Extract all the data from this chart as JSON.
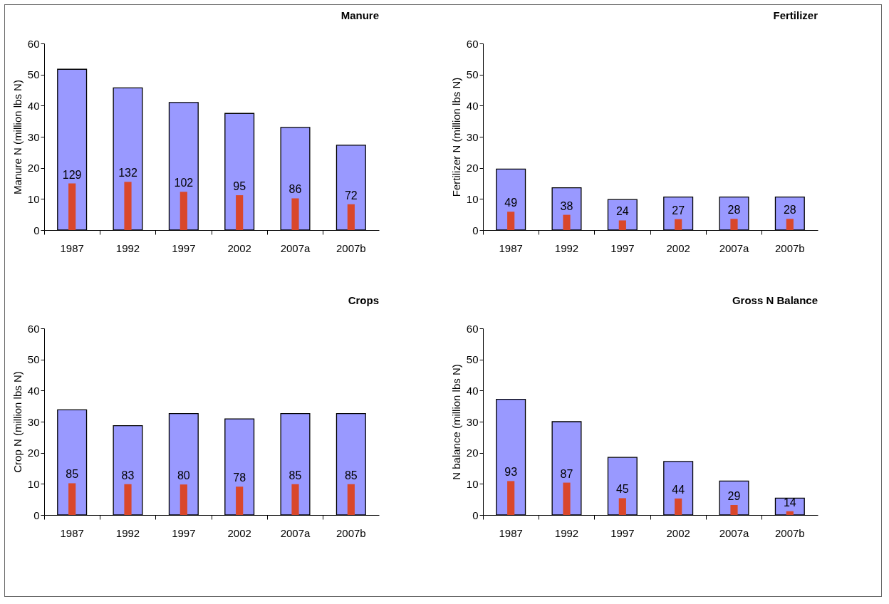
{
  "chart_data": [
    {
      "type": "bar",
      "title": "Manure",
      "ylabel": "Manure N (million lbs N)",
      "categories": [
        "1987",
        "1992",
        "1997",
        "2002",
        "2007a",
        "2007b"
      ],
      "ylim": [
        0,
        60
      ],
      "yticks": [
        0,
        10,
        20,
        30,
        40,
        50,
        60
      ],
      "series": [
        {
          "color": "#9999ff",
          "values": [
            51.7,
            45.7,
            41,
            37.5,
            33,
            27.3
          ]
        },
        {
          "color": "#d9472b",
          "values": [
            15,
            15.5,
            12.3,
            11.2,
            10.2,
            8.3
          ]
        }
      ],
      "annotations": [
        {
          "text": "129",
          "x": "1987",
          "y": 15
        },
        {
          "text": "132",
          "x": "1992",
          "y": 15.5
        },
        {
          "text": "102",
          "x": "1997",
          "y": 12.3
        },
        {
          "text": "95",
          "x": "2002",
          "y": 11.2
        },
        {
          "text": "86",
          "x": "2007a",
          "y": 10.2
        },
        {
          "text": "72",
          "x": "2007b",
          "y": 8.3
        }
      ]
    },
    {
      "type": "bar",
      "title": "Fertilizer",
      "ylabel": "Fertilizer N (million lbs N)",
      "categories": [
        "1987",
        "1992",
        "1997",
        "2002",
        "2007a",
        "2007b"
      ],
      "ylim": [
        0,
        60
      ],
      "yticks": [
        0,
        10,
        20,
        30,
        40,
        50,
        60
      ],
      "series": [
        {
          "color": "#9999ff",
          "values": [
            19.6,
            13.6,
            9.8,
            10.6,
            10.6,
            10.6
          ]
        },
        {
          "color": "#d9472b",
          "values": [
            5.9,
            4.9,
            3.1,
            3.5,
            3.6,
            3.6
          ]
        }
      ],
      "annotations": [
        {
          "text": "49",
          "x": "1987",
          "y": 5.9
        },
        {
          "text": "38",
          "x": "1992",
          "y": 4.9
        },
        {
          "text": "24",
          "x": "1997",
          "y": 3.1
        },
        {
          "text": "27",
          "x": "2002",
          "y": 3.5
        },
        {
          "text": "28",
          "x": "2007a",
          "y": 3.6
        },
        {
          "text": "28",
          "x": "2007b",
          "y": 3.6
        }
      ]
    },
    {
      "type": "bar",
      "title": "Crops",
      "ylabel": "Crop N (million lbs N)",
      "categories": [
        "1987",
        "1992",
        "1997",
        "2002",
        "2007a",
        "2007b"
      ],
      "ylim": [
        0,
        60
      ],
      "yticks": [
        0,
        10,
        20,
        30,
        40,
        50,
        60
      ],
      "series": [
        {
          "color": "#9999ff",
          "values": [
            33.8,
            28.7,
            32.6,
            30.9,
            32.6,
            32.6
          ]
        },
        {
          "color": "#d9472b",
          "values": [
            10.2,
            9.9,
            9.8,
            9.1,
            9.9,
            9.9
          ]
        }
      ],
      "annotations": [
        {
          "text": "85",
          "x": "1987",
          "y": 10.2
        },
        {
          "text": "83",
          "x": "1992",
          "y": 9.9
        },
        {
          "text": "80",
          "x": "1997",
          "y": 9.8
        },
        {
          "text": "78",
          "x": "2002",
          "y": 9.1
        },
        {
          "text": "85",
          "x": "2007a",
          "y": 9.9
        },
        {
          "text": "85",
          "x": "2007b",
          "y": 9.9
        }
      ]
    },
    {
      "type": "bar",
      "title": "Gross N Balance",
      "ylabel": "N balance (million lbs N)",
      "categories": [
        "1987",
        "1992",
        "1997",
        "2002",
        "2007a",
        "2007b"
      ],
      "ylim": [
        0,
        60
      ],
      "yticks": [
        0,
        10,
        20,
        30,
        40,
        50,
        60
      ],
      "series": [
        {
          "color": "#9999ff",
          "values": [
            37.2,
            30,
            18.5,
            17.2,
            10.9,
            5.4
          ]
        },
        {
          "color": "#d9472b",
          "values": [
            10.9,
            10.4,
            5.4,
            5.3,
            3.2,
            1.2
          ]
        }
      ],
      "annotations": [
        {
          "text": "93",
          "x": "1987",
          "y": 10.9
        },
        {
          "text": "87",
          "x": "1992",
          "y": 10.4
        },
        {
          "text": "45",
          "x": "1997",
          "y": 5.4
        },
        {
          "text": "44",
          "x": "2002",
          "y": 5.3
        },
        {
          "text": "29",
          "x": "2007a",
          "y": 3.2
        },
        {
          "text": "14",
          "x": "2007b",
          "y": 1.2
        }
      ]
    }
  ]
}
